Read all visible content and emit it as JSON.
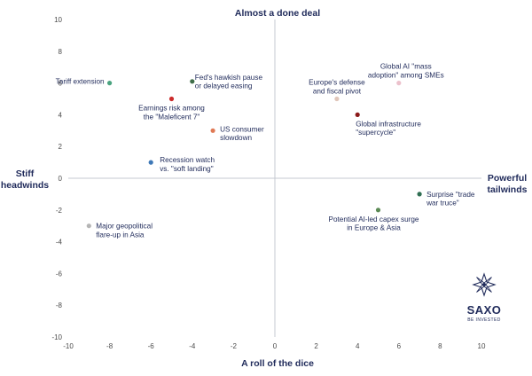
{
  "chart_data": {
    "type": "scatter",
    "xlim": [
      -10,
      10
    ],
    "ylim": [
      -10,
      10
    ],
    "x_ticks": [
      -10,
      -8,
      -6,
      -4,
      -2,
      0,
      2,
      4,
      6,
      8,
      10
    ],
    "y_ticks": [
      -10,
      -8,
      -6,
      -4,
      -2,
      0,
      2,
      4,
      6,
      8,
      10
    ],
    "grid": false,
    "axis_labels": {
      "top": "Almost a done deal",
      "bottom": "A roll of the dice",
      "left": [
        "Stiff",
        "headwinds"
      ],
      "right": [
        "Powerful",
        "tailwinds"
      ]
    },
    "points": [
      {
        "label": [
          "Tariff extension"
        ],
        "x": -8,
        "y": 6,
        "color": "#4aa37f"
      },
      {
        "label": [
          "Fed's hawkish pause",
          "or delayed easing"
        ],
        "x": -4,
        "y": 6.1,
        "color": "#3f6e49"
      },
      {
        "label": [
          "Earnings risk among",
          "the \"Maleficent 7\""
        ],
        "x": -5,
        "y": 5,
        "color": "#cc2b2b"
      },
      {
        "label": [
          "US consumer",
          "slowdown"
        ],
        "x": -3,
        "y": 3,
        "color": "#e07a55"
      },
      {
        "label": [
          "Recession watch",
          "vs. \"soft landing\""
        ],
        "x": -6,
        "y": 1,
        "color": "#3e78b7"
      },
      {
        "label": [
          "Major geopolitical",
          "flare-up in Asia"
        ],
        "x": -9,
        "y": -3,
        "color": "#b5b5b5"
      },
      {
        "label": [
          "Europe's defense",
          "and fiscal pivot"
        ],
        "x": 3,
        "y": 5,
        "color": "#e0c6ba"
      },
      {
        "label": [
          "Global AI \"mass",
          "adoption\" among SMEs"
        ],
        "x": 6,
        "y": 6,
        "color": "#ecc1cc"
      },
      {
        "label": [
          "Global infrastructure",
          "\"supercycle\""
        ],
        "x": 4,
        "y": 4,
        "color": "#8b1a1a"
      },
      {
        "label": [
          "Surprise \"trade",
          "war truce\""
        ],
        "x": 7,
        "y": -1,
        "color": "#2f6e52"
      },
      {
        "label": [
          "Potential AI-led capex surge",
          "in Europe & Asia"
        ],
        "x": 5,
        "y": -2,
        "color": "#5b8a55"
      }
    ]
  },
  "brand": {
    "name": "SAXO",
    "tagline": "BE INVESTED",
    "color": "#1f2a5a"
  }
}
